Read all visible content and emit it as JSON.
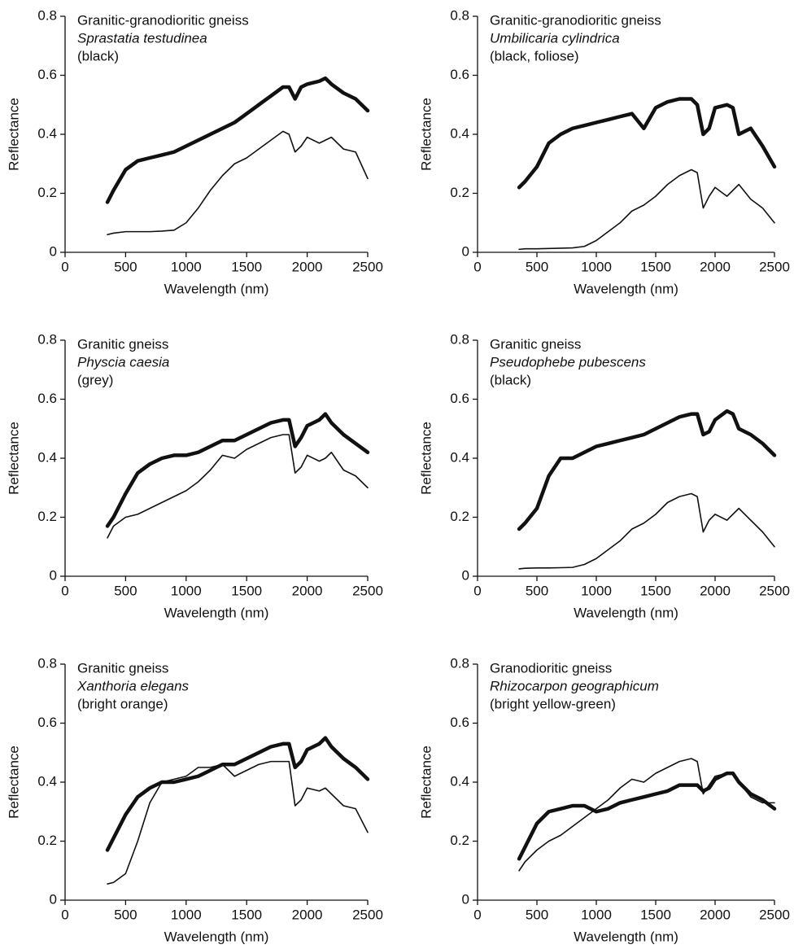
{
  "chart_data": [
    {
      "type": "line",
      "annotations": [
        "Granitic-granodioritic gneiss",
        "Sprastatia testudinea",
        "(black)"
      ],
      "xlabel": "Wavelength (nm)",
      "ylabel": "Reflectance",
      "xlim": [
        0,
        2500
      ],
      "xticks": [
        0,
        500,
        1000,
        1500,
        2000,
        2500
      ],
      "ylim": [
        0,
        0.8
      ],
      "yticks": [
        0,
        0.2,
        0.4,
        0.6,
        0.8
      ],
      "x": [
        350,
        400,
        500,
        600,
        700,
        800,
        900,
        1000,
        1100,
        1200,
        1300,
        1400,
        1500,
        1600,
        1700,
        1800,
        1850,
        1900,
        1950,
        2000,
        2100,
        2150,
        2200,
        2300,
        2400,
        2500
      ],
      "series": [
        {
          "color": "#111111",
          "width": 4.5,
          "values": [
            0.17,
            0.21,
            0.28,
            0.31,
            0.32,
            0.33,
            0.34,
            0.36,
            0.38,
            0.4,
            0.42,
            0.44,
            0.47,
            0.5,
            0.53,
            0.56,
            0.56,
            0.52,
            0.56,
            0.57,
            0.58,
            0.59,
            0.57,
            0.54,
            0.52,
            0.48
          ]
        },
        {
          "color": "#111111",
          "width": 1.6,
          "values": [
            0.06,
            0.065,
            0.07,
            0.07,
            0.07,
            0.072,
            0.075,
            0.1,
            0.15,
            0.21,
            0.26,
            0.3,
            0.32,
            0.35,
            0.38,
            0.41,
            0.4,
            0.34,
            0.36,
            0.39,
            0.37,
            0.38,
            0.39,
            0.35,
            0.34,
            0.25
          ]
        }
      ]
    },
    {
      "type": "line",
      "annotations": [
        "Granitic-granodioritic gneiss",
        "Umbilicaria cylindrica",
        "(black, foliose)"
      ],
      "xlabel": "Wavelength (nm)",
      "ylabel": "Reflectance",
      "xlim": [
        0,
        2500
      ],
      "xticks": [
        0,
        500,
        1000,
        1500,
        2000,
        2500
      ],
      "ylim": [
        0,
        0.8
      ],
      "yticks": [
        0,
        0.2,
        0.4,
        0.6,
        0.8
      ],
      "x": [
        350,
        400,
        500,
        600,
        700,
        800,
        900,
        1000,
        1100,
        1200,
        1300,
        1400,
        1500,
        1600,
        1700,
        1800,
        1850,
        1900,
        1950,
        2000,
        2100,
        2150,
        2200,
        2300,
        2400,
        2500
      ],
      "series": [
        {
          "color": "#111111",
          "width": 4.5,
          "values": [
            0.22,
            0.24,
            0.29,
            0.37,
            0.4,
            0.42,
            0.43,
            0.44,
            0.45,
            0.46,
            0.47,
            0.42,
            0.49,
            0.51,
            0.52,
            0.52,
            0.5,
            0.4,
            0.42,
            0.49,
            0.5,
            0.49,
            0.4,
            0.42,
            0.36,
            0.29
          ]
        },
        {
          "color": "#111111",
          "width": 1.6,
          "values": [
            0.01,
            0.012,
            0.012,
            0.013,
            0.014,
            0.015,
            0.02,
            0.04,
            0.07,
            0.1,
            0.14,
            0.16,
            0.19,
            0.23,
            0.26,
            0.28,
            0.27,
            0.15,
            0.19,
            0.22,
            0.19,
            0.21,
            0.23,
            0.18,
            0.15,
            0.1
          ]
        }
      ]
    },
    {
      "type": "line",
      "annotations": [
        "Granitic gneiss",
        "Physcia caesia",
        "(grey)"
      ],
      "xlabel": "Wavelength (nm)",
      "ylabel": "Reflectance",
      "xlim": [
        0,
        2500
      ],
      "xticks": [
        0,
        500,
        1000,
        1500,
        2000,
        2500
      ],
      "ylim": [
        0,
        0.8
      ],
      "yticks": [
        0,
        0.2,
        0.4,
        0.6,
        0.8
      ],
      "x": [
        350,
        400,
        500,
        600,
        700,
        800,
        900,
        1000,
        1100,
        1200,
        1300,
        1400,
        1500,
        1600,
        1700,
        1800,
        1850,
        1900,
        1950,
        2000,
        2100,
        2150,
        2200,
        2300,
        2400,
        2500
      ],
      "series": [
        {
          "color": "#111111",
          "width": 4.5,
          "values": [
            0.17,
            0.2,
            0.28,
            0.35,
            0.38,
            0.4,
            0.41,
            0.41,
            0.42,
            0.44,
            0.46,
            0.46,
            0.48,
            0.5,
            0.52,
            0.53,
            0.53,
            0.44,
            0.47,
            0.51,
            0.53,
            0.55,
            0.52,
            0.48,
            0.45,
            0.42
          ]
        },
        {
          "color": "#111111",
          "width": 1.6,
          "values": [
            0.13,
            0.17,
            0.2,
            0.21,
            0.23,
            0.25,
            0.27,
            0.29,
            0.32,
            0.36,
            0.41,
            0.4,
            0.43,
            0.45,
            0.47,
            0.48,
            0.48,
            0.35,
            0.37,
            0.41,
            0.39,
            0.4,
            0.42,
            0.36,
            0.34,
            0.3
          ]
        }
      ]
    },
    {
      "type": "line",
      "annotations": [
        "Granitic gneiss",
        "Pseudophebe pubescens",
        "(black)"
      ],
      "xlabel": "Wavelength (nm)",
      "ylabel": "Reflectance",
      "xlim": [
        0,
        2500
      ],
      "xticks": [
        0,
        500,
        1000,
        1500,
        2000,
        2500
      ],
      "ylim": [
        0,
        0.8
      ],
      "yticks": [
        0,
        0.2,
        0.4,
        0.6,
        0.8
      ],
      "x": [
        350,
        400,
        500,
        600,
        700,
        800,
        900,
        1000,
        1100,
        1200,
        1300,
        1400,
        1500,
        1600,
        1700,
        1800,
        1850,
        1900,
        1950,
        2000,
        2100,
        2150,
        2200,
        2300,
        2400,
        2500
      ],
      "series": [
        {
          "color": "#111111",
          "width": 4.5,
          "values": [
            0.16,
            0.18,
            0.23,
            0.34,
            0.4,
            0.4,
            0.42,
            0.44,
            0.45,
            0.46,
            0.47,
            0.48,
            0.5,
            0.52,
            0.54,
            0.55,
            0.55,
            0.48,
            0.49,
            0.53,
            0.56,
            0.55,
            0.5,
            0.48,
            0.45,
            0.41
          ]
        },
        {
          "color": "#111111",
          "width": 1.6,
          "values": [
            0.025,
            0.027,
            0.028,
            0.028,
            0.029,
            0.03,
            0.04,
            0.06,
            0.09,
            0.12,
            0.16,
            0.18,
            0.21,
            0.25,
            0.27,
            0.28,
            0.27,
            0.15,
            0.19,
            0.21,
            0.19,
            0.21,
            0.23,
            0.19,
            0.15,
            0.1
          ]
        }
      ]
    },
    {
      "type": "line",
      "annotations": [
        "Granitic gneiss",
        "Xanthoria elegans",
        "(bright orange)"
      ],
      "xlabel": "Wavelength (nm)",
      "ylabel": "Reflectance",
      "xlim": [
        0,
        2500
      ],
      "xticks": [
        0,
        500,
        1000,
        1500,
        2000,
        2500
      ],
      "ylim": [
        0,
        0.8
      ],
      "yticks": [
        0,
        0.2,
        0.4,
        0.6,
        0.8
      ],
      "x": [
        350,
        400,
        500,
        600,
        700,
        800,
        900,
        1000,
        1100,
        1200,
        1300,
        1400,
        1500,
        1600,
        1700,
        1800,
        1850,
        1900,
        1950,
        2000,
        2100,
        2150,
        2200,
        2300,
        2400,
        2500
      ],
      "series": [
        {
          "color": "#111111",
          "width": 4.5,
          "values": [
            0.17,
            0.21,
            0.29,
            0.35,
            0.38,
            0.4,
            0.4,
            0.41,
            0.42,
            0.44,
            0.46,
            0.46,
            0.48,
            0.5,
            0.52,
            0.53,
            0.53,
            0.45,
            0.47,
            0.51,
            0.53,
            0.55,
            0.52,
            0.48,
            0.45,
            0.41
          ]
        },
        {
          "color": "#111111",
          "width": 1.6,
          "values": [
            0.055,
            0.06,
            0.09,
            0.2,
            0.33,
            0.4,
            0.41,
            0.42,
            0.45,
            0.45,
            0.46,
            0.42,
            0.44,
            0.46,
            0.47,
            0.47,
            0.47,
            0.32,
            0.34,
            0.38,
            0.37,
            0.38,
            0.36,
            0.32,
            0.31,
            0.23
          ]
        }
      ]
    },
    {
      "type": "line",
      "annotations": [
        "Granodioritic gneiss",
        "Rhizocarpon geographicum",
        "(bright yellow-green)"
      ],
      "xlabel": "Wavelength (nm)",
      "ylabel": "Reflectance",
      "xlim": [
        0,
        2500
      ],
      "xticks": [
        0,
        500,
        1000,
        1500,
        2000,
        2500
      ],
      "ylim": [
        0,
        0.8
      ],
      "yticks": [
        0,
        0.2,
        0.4,
        0.6,
        0.8
      ],
      "x": [
        350,
        400,
        500,
        600,
        700,
        800,
        900,
        1000,
        1100,
        1200,
        1300,
        1400,
        1500,
        1600,
        1700,
        1800,
        1850,
        1900,
        1950,
        2000,
        2100,
        2150,
        2200,
        2300,
        2400,
        2500
      ],
      "series": [
        {
          "color": "#111111",
          "width": 4.5,
          "values": [
            0.14,
            0.18,
            0.26,
            0.3,
            0.31,
            0.32,
            0.32,
            0.3,
            0.31,
            0.33,
            0.34,
            0.35,
            0.36,
            0.37,
            0.39,
            0.39,
            0.39,
            0.37,
            0.38,
            0.41,
            0.43,
            0.43,
            0.4,
            0.36,
            0.34,
            0.31
          ]
        },
        {
          "color": "#111111",
          "width": 1.6,
          "values": [
            0.1,
            0.13,
            0.17,
            0.2,
            0.22,
            0.25,
            0.28,
            0.31,
            0.34,
            0.38,
            0.41,
            0.4,
            0.43,
            0.45,
            0.47,
            0.48,
            0.47,
            0.36,
            0.39,
            0.42,
            0.43,
            0.43,
            0.4,
            0.35,
            0.33,
            0.33
          ]
        }
      ]
    }
  ]
}
